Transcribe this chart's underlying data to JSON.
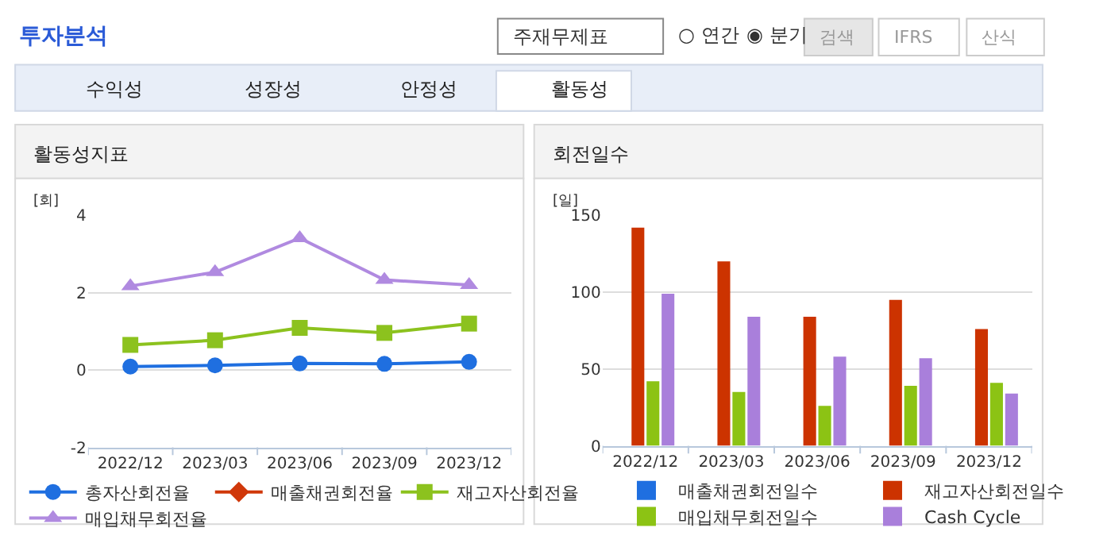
{
  "chart_data": [
    {
      "type": "other",
      "title": "투자분석",
      "annotations": [
        "주재무제표",
        "○ 연간",
        "◉ 분기",
        "검색",
        "IFRS",
        "산식",
        "수익성",
        "성장성",
        "안정성",
        "활동성"
      ]
    },
    {
      "type": "line",
      "title": "활동성지표",
      "ylabel": "[회]",
      "categories": [
        "2022/12",
        "2023/03",
        "2023/06",
        "2023/09",
        "2023/12"
      ],
      "ylim": [
        -2,
        4
      ],
      "yticks": [
        -2,
        0,
        2,
        4
      ],
      "grid": "y",
      "legend": "bottom",
      "series": [
        {
          "name": "총자산회전율",
          "color": "#1f6fe0",
          "marker": "circle",
          "values": [
            0.09,
            0.12,
            0.17,
            0.16,
            0.21
          ]
        },
        {
          "name": "매출채권회전율",
          "color": "#d0380a",
          "marker": "diamond",
          "values": [
            null,
            null,
            null,
            null,
            null
          ]
        },
        {
          "name": "재고자산회전율",
          "color": "#8cc21e",
          "marker": "square",
          "values": [
            0.65,
            0.77,
            1.09,
            0.96,
            1.2
          ]
        },
        {
          "name": "매입채무회전율",
          "color": "#b08ae0",
          "marker": "triangle",
          "values": [
            2.17,
            2.53,
            3.41,
            2.33,
            2.2
          ]
        }
      ]
    },
    {
      "type": "bar",
      "title": "회전일수",
      "ylabel": "[일]",
      "categories": [
        "2022/12",
        "2023/03",
        "2023/06",
        "2023/09",
        "2023/12"
      ],
      "ylim": [
        0,
        150
      ],
      "yticks": [
        0,
        50,
        100,
        150
      ],
      "grid": "y",
      "legend": "bottom",
      "series": [
        {
          "name": "매출채권회전일수",
          "color": "#1f6fe0",
          "values": [
            null,
            null,
            null,
            null,
            null
          ]
        },
        {
          "name": "재고자산회전일수",
          "color": "#cc3300",
          "values": [
            142,
            120,
            84,
            95,
            76
          ]
        },
        {
          "name": "매입채무회전일수",
          "color": "#8cc314",
          "values": [
            42,
            35,
            26,
            39,
            41
          ]
        },
        {
          "name": "Cash Cycle",
          "color": "#a97fdb",
          "values": [
            99,
            84,
            58,
            57,
            34
          ]
        }
      ]
    }
  ]
}
